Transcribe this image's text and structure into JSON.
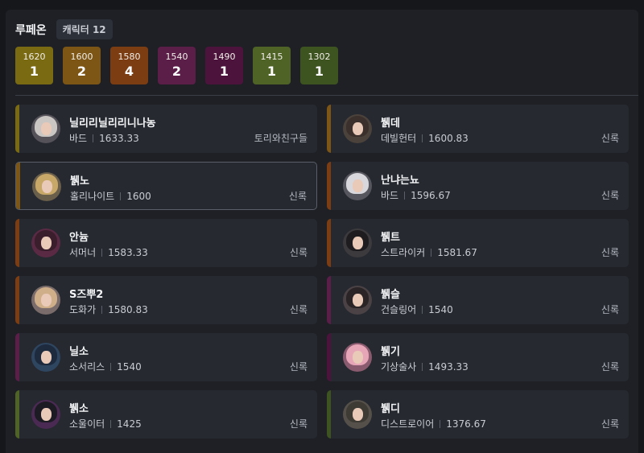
{
  "header": {
    "server": "루페온",
    "character_count": "캐릭터 12"
  },
  "tiers": [
    {
      "level": "1620",
      "count": "1",
      "color": "#7a6a12"
    },
    {
      "level": "1600",
      "count": "2",
      "color": "#7d5514"
    },
    {
      "level": "1580",
      "count": "4",
      "color": "#7c3d13"
    },
    {
      "level": "1540",
      "count": "2",
      "color": "#5a1e48"
    },
    {
      "level": "1490",
      "count": "1",
      "color": "#4c143c"
    },
    {
      "level": "1415",
      "count": "1",
      "color": "#4f6326"
    },
    {
      "level": "1302",
      "count": "1",
      "color": "#3d5320"
    }
  ],
  "characters": [
    {
      "name": "닐리리닐리리니나농",
      "class": "바드",
      "item_level": "1633.33",
      "guild": "토리와친구들",
      "tier_color": "#7a6a12",
      "avatar_hair": "#c9c6c4",
      "avatar_bg": "#55525a"
    },
    {
      "name": "뷁데",
      "class": "데빌헌터",
      "item_level": "1600.83",
      "guild": "신록",
      "tier_color": "#7d5514",
      "avatar_hair": "#3b302b",
      "avatar_bg": "#4b423c"
    },
    {
      "name": "뷁노",
      "class": "홀리나이트",
      "item_level": "1600",
      "guild": "신록",
      "tier_color": "#7d5514",
      "avatar_hair": "#c8a868",
      "avatar_bg": "#6a5f4b"
    },
    {
      "name": "난냐는뇨",
      "class": "바드",
      "item_level": "1596.67",
      "guild": "신록",
      "tier_color": "#7c3d13",
      "avatar_hair": "#d8d8dc",
      "avatar_bg": "#56565e"
    },
    {
      "name": "안늄",
      "class": "서머너",
      "item_level": "1583.33",
      "guild": "신록",
      "tier_color": "#7c3d13",
      "avatar_hair": "#3a1e2c",
      "avatar_bg": "#5a2a44"
    },
    {
      "name": "뷁트",
      "class": "스트라이커",
      "item_level": "1581.67",
      "guild": "신록",
      "tier_color": "#7c3d13",
      "avatar_hair": "#1e1c1e",
      "avatar_bg": "#3c3a3c"
    },
    {
      "name": "S즈뿌2",
      "class": "도화가",
      "item_level": "1580.83",
      "guild": "신록",
      "tier_color": "#7c3d13",
      "avatar_hair": "#cfae8a",
      "avatar_bg": "#7a6c6a"
    },
    {
      "name": "뷁슬",
      "class": "건슬링어",
      "item_level": "1540",
      "guild": "신록",
      "tier_color": "#5a1e48",
      "avatar_hair": "#2a2426",
      "avatar_bg": "#4a4245"
    },
    {
      "name": "닐소",
      "class": "소서리스",
      "item_level": "1540",
      "guild": "신록",
      "tier_color": "#5a1e48",
      "avatar_hair": "#1e2a3e",
      "avatar_bg": "#2e4660"
    },
    {
      "name": "뷁기",
      "class": "기상술사",
      "item_level": "1493.33",
      "guild": "신록",
      "tier_color": "#4c143c",
      "avatar_hair": "#e6a6b8",
      "avatar_bg": "#8a5a6e"
    },
    {
      "name": "뷁소",
      "class": "소울이터",
      "item_level": "1425",
      "guild": "신록",
      "tier_color": "#4f6326",
      "avatar_hair": "#1c1a22",
      "avatar_bg": "#4a2a52"
    },
    {
      "name": "뷁디",
      "class": "디스트로이어",
      "item_level": "1376.67",
      "guild": "신록",
      "tier_color": "#3d5320",
      "avatar_hair": "#3e3a34",
      "avatar_bg": "#55504a"
    }
  ],
  "selected_index": 2
}
